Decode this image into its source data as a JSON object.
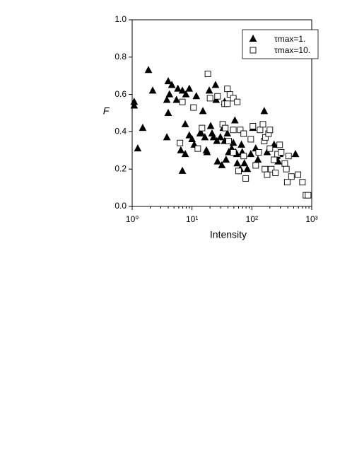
{
  "chart_data": {
    "type": "scatter",
    "ylabel": "F",
    "xlabel": "Intensity",
    "xscale": "log",
    "xlim": [
      1,
      1000
    ],
    "xticks": [
      {
        "value": 1,
        "label": "10⁰"
      },
      {
        "value": 10,
        "label": "10¹"
      },
      {
        "value": 100,
        "label": "10²"
      },
      {
        "value": 1000,
        "label": "10³"
      }
    ],
    "ylim": [
      0,
      1
    ],
    "yticks": [
      {
        "value": 0,
        "label": "0.0"
      },
      0.2,
      0.4,
      0.6,
      0.8,
      {
        "value": 1,
        "label": "1.0"
      }
    ],
    "legend": "upper right",
    "series": [
      {
        "name": "τmax=1.",
        "color": "#000000",
        "marker": "triangle",
        "filled": true,
        "x": [
          1.08,
          1.08,
          1.24,
          1.5,
          1.87,
          2.2,
          4.0,
          4.2,
          4.6,
          3.8,
          4.0,
          3.8,
          5.5,
          5.8,
          6.9,
          6.5,
          6.9,
          7.7,
          7.7,
          7.9,
          9.0,
          9.0,
          10,
          10.9,
          11.8,
          13.6,
          14.3,
          15.2,
          16.4,
          17.4,
          17.8,
          19.4,
          20.5,
          21.6,
          22.9,
          24.7,
          25.3,
          26,
          26.7,
          29.8,
          31.5,
          33.3,
          35,
          35,
          37,
          39,
          41,
          46,
          49,
          52,
          53,
          56,
          57,
          64,
          67,
          69,
          75,
          84,
          96,
          104,
          116,
          126,
          161,
          180,
          235,
          262,
          292,
          276,
          535
        ],
        "values": [
          0.56,
          0.54,
          0.31,
          0.42,
          0.73,
          0.62,
          0.67,
          0.6,
          0.65,
          0.57,
          0.5,
          0.37,
          0.57,
          0.63,
          0.62,
          0.3,
          0.19,
          0.28,
          0.44,
          0.6,
          0.63,
          0.38,
          0.36,
          0.33,
          0.59,
          0.39,
          0.39,
          0.51,
          0.37,
          0.3,
          0.29,
          0.62,
          0.43,
          0.39,
          0.37,
          0.65,
          0.57,
          0.35,
          0.24,
          0.37,
          0.22,
          0.42,
          0.56,
          0.35,
          0.25,
          0.39,
          0.29,
          0.31,
          0.34,
          0.46,
          0.29,
          0.28,
          0.23,
          0.2,
          0.33,
          0.29,
          0.23,
          0.2,
          0.28,
          0.42,
          0.31,
          0.25,
          0.51,
          0.29,
          0.33,
          0.27,
          0.28,
          0.24,
          0.28
        ]
      },
      {
        "name": "τmax=10.",
        "color": "#000000",
        "marker": "square",
        "filled": false,
        "x": [
          18.4,
          6.9,
          6.3,
          10.6,
          12.5,
          14.7,
          20,
          26.7,
          35,
          39,
          43,
          49,
          57,
          39,
          32.6,
          36,
          41,
          49,
          49,
          64,
          73,
          60,
          79,
          73,
          96,
          104,
          116,
          137,
          153,
          165,
          161,
          168,
          180,
          190,
          200,
          200,
          211,
          235,
          248,
          269,
          309,
          355,
          377,
          410,
          458,
          390,
          590,
          700,
          800,
          870,
          292,
          130
        ],
        "values": [
          0.71,
          0.56,
          0.34,
          0.53,
          0.31,
          0.42,
          0.58,
          0.59,
          0.55,
          0.63,
          0.6,
          0.58,
          0.56,
          0.55,
          0.44,
          0.42,
          0.35,
          0.41,
          0.29,
          0.41,
          0.39,
          0.19,
          0.15,
          0.27,
          0.36,
          0.43,
          0.22,
          0.41,
          0.44,
          0.2,
          0.35,
          0.37,
          0.17,
          0.39,
          0.41,
          0.31,
          0.2,
          0.25,
          0.18,
          0.28,
          0.29,
          0.23,
          0.2,
          0.27,
          0.16,
          0.13,
          0.17,
          0.13,
          0.06,
          0.06,
          0.33,
          0.29
        ]
      }
    ]
  }
}
